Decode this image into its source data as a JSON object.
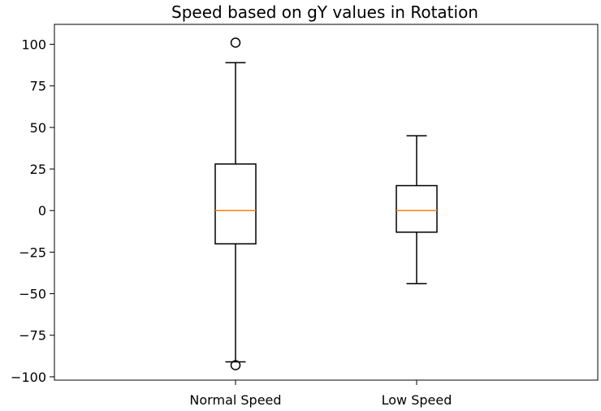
{
  "chart_data": {
    "type": "box",
    "title": "Speed based on gY values in Rotation",
    "xlabel": "",
    "ylabel": "",
    "ylim": [
      -102,
      112
    ],
    "yticks": [
      100,
      75,
      50,
      25,
      0,
      -25,
      -50,
      -75,
      -100
    ],
    "yticklabels": [
      "100",
      "75",
      "50",
      "25",
      "0",
      "−25",
      "−50",
      "−75",
      "−100"
    ],
    "categories": [
      "Normal Speed",
      "Low Speed"
    ],
    "boxes": [
      {
        "category": "Normal Speed",
        "whisker_low": -91,
        "q1": -20,
        "median": 0,
        "q3": 28,
        "whisker_high": 89,
        "outliers": [
          101,
          -93
        ]
      },
      {
        "category": "Low Speed",
        "whisker_low": -44,
        "q1": -13,
        "median": 0,
        "q3": 15,
        "whisker_high": 45,
        "outliers": []
      }
    ],
    "grid": false,
    "colors": {
      "box": "#000000",
      "median": "#ff7f0e"
    }
  }
}
